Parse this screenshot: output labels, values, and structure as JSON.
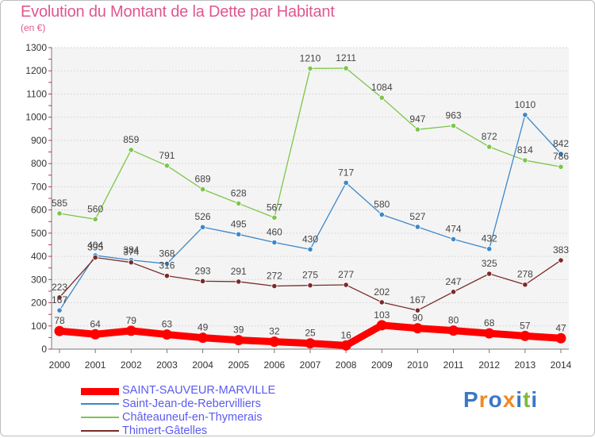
{
  "header": {
    "title": "Evolution du Montant de la Dette par Habitant",
    "subtitle": "(en €)"
  },
  "brand": {
    "text": "Proxiti",
    "letter_colors": [
      "#3a78c8",
      "#f08a24",
      "#3a78c8",
      "#f08a24",
      "#3a78c8",
      "#7cba3a",
      "#3a78c8"
    ]
  },
  "chart_data": {
    "type": "line",
    "title": "Evolution du Montant de la Dette par Habitant",
    "subtitle": "(en €)",
    "xlabel": "",
    "ylabel": "",
    "x": [
      "2000",
      "2001",
      "2002",
      "2003",
      "2004",
      "2005",
      "2006",
      "2007",
      "2008",
      "2009",
      "2010",
      "2011",
      "2012",
      "2013",
      "2014"
    ],
    "ylim": [
      0,
      1300
    ],
    "yticks": [
      0,
      100,
      200,
      300,
      400,
      500,
      600,
      700,
      800,
      900,
      1000,
      1100,
      1200,
      1300
    ],
    "grid": "horizontal",
    "legend": "bottom-left",
    "series": [
      {
        "name": "SAINT-SAUVEUR-MARVILLE",
        "color": "#ff0000",
        "thick": true,
        "values": [
          78,
          64,
          79,
          63,
          49,
          39,
          32,
          25,
          16,
          103,
          90,
          80,
          68,
          57,
          47
        ]
      },
      {
        "name": "Saint-Jean-de-Rebervilliers",
        "color": "#3d88c9",
        "thick": false,
        "values": [
          167,
          404,
          384,
          368,
          526,
          495,
          460,
          430,
          717,
          580,
          527,
          474,
          432,
          1010,
          842
        ]
      },
      {
        "name": "Châteauneuf-en-Thymerais",
        "color": "#7cc64a",
        "thick": false,
        "values": [
          585,
          560,
          859,
          791,
          689,
          628,
          567,
          1210,
          1211,
          1084,
          947,
          963,
          872,
          814,
          786
        ]
      },
      {
        "name": "Thimert-Gâtelles",
        "color": "#7a2a2a",
        "thick": false,
        "values": [
          223,
          395,
          374,
          316,
          293,
          291,
          272,
          275,
          277,
          202,
          167,
          247,
          325,
          278,
          383
        ]
      }
    ],
    "data_labels": [
      [
        "78",
        "64",
        "79",
        "63",
        "49",
        "39",
        "32",
        "25",
        "16",
        "103",
        "90",
        "80",
        "68",
        "57",
        "47"
      ],
      [
        "167",
        "404",
        "384",
        "368",
        "526",
        "495",
        "460",
        "430",
        "717",
        "580",
        "527",
        "474",
        "432",
        "1010",
        "842"
      ],
      [
        "585",
        "560",
        "859",
        "791",
        "689",
        "628",
        "567",
        "1210",
        "1211",
        "1084",
        "947",
        "963",
        "872",
        "814",
        "786"
      ],
      [
        "223",
        "395",
        "374",
        "316",
        "293",
        "291",
        "272",
        "275",
        "277",
        "202",
        "167",
        "247",
        "325",
        "278",
        "383"
      ]
    ]
  }
}
